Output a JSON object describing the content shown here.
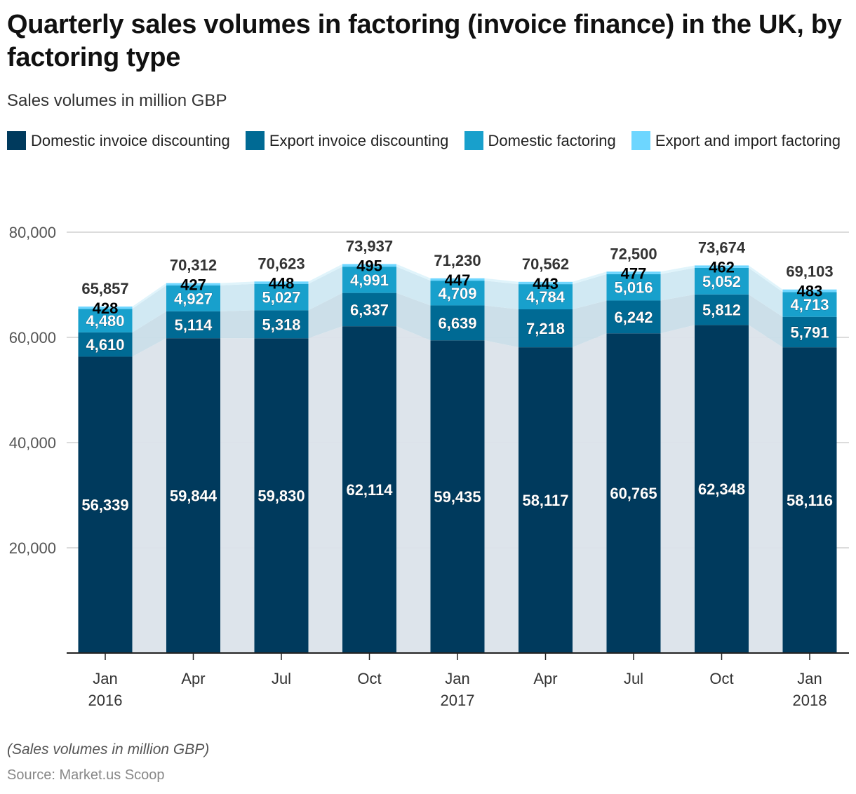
{
  "title": "Quarterly sales volumes in factoring (invoice finance) in the UK, by factoring type",
  "subtitle": "Sales volumes in million GBP",
  "footnote": "(Sales volumes in million GBP)",
  "source": "Source: Market.us Scoop",
  "colors": {
    "domestic_invoice_discounting": "#003a5d",
    "export_invoice_discounting": "#006a94",
    "domestic_factoring": "#18a0cc",
    "export_import_factoring": "#6dd6ff",
    "band": "#dbe3ea",
    "gridline": "#d0d0d0",
    "axis": "#222222"
  },
  "legend": [
    {
      "label": "Domestic invoice discounting",
      "color": "#003a5d"
    },
    {
      "label": "Export invoice discounting",
      "color": "#006a94"
    },
    {
      "label": "Domestic factoring",
      "color": "#18a0cc"
    },
    {
      "label": "Export and import factoring",
      "color": "#6dd6ff"
    }
  ],
  "chart_data": {
    "type": "bar",
    "stacked": true,
    "title": "Quarterly sales volumes in factoring (invoice finance) in the UK, by factoring type",
    "subtitle": "Sales volumes in million GBP",
    "xlabel": "",
    "ylabel": "",
    "ylim": [
      0,
      80000
    ],
    "yticks": [
      20000,
      40000,
      60000,
      80000
    ],
    "ytick_labels": [
      "20,000",
      "40,000",
      "60,000",
      "80,000"
    ],
    "grid": true,
    "legend_position": "top",
    "categories": [
      {
        "line1": "Jan",
        "line2": "2016"
      },
      {
        "line1": "Apr",
        "line2": ""
      },
      {
        "line1": "Jul",
        "line2": ""
      },
      {
        "line1": "Oct",
        "line2": ""
      },
      {
        "line1": "Jan",
        "line2": "2017"
      },
      {
        "line1": "Apr",
        "line2": ""
      },
      {
        "line1": "Jul",
        "line2": ""
      },
      {
        "line1": "Oct",
        "line2": ""
      },
      {
        "line1": "Jan",
        "line2": "2018"
      }
    ],
    "series": [
      {
        "name": "Domestic invoice discounting",
        "color": "#003a5d",
        "values": [
          56339,
          59844,
          59830,
          62114,
          59435,
          58117,
          60765,
          62348,
          58116
        ]
      },
      {
        "name": "Export invoice discounting",
        "color": "#006a94",
        "values": [
          4610,
          5114,
          5318,
          6337,
          6639,
          7218,
          6242,
          5812,
          5791
        ]
      },
      {
        "name": "Domestic factoring",
        "color": "#18a0cc",
        "values": [
          4480,
          4927,
          5027,
          4991,
          4709,
          4784,
          5016,
          5052,
          4713
        ]
      },
      {
        "name": "Export and import factoring",
        "color": "#6dd6ff",
        "values": [
          428,
          427,
          448,
          495,
          447,
          443,
          477,
          462,
          483
        ]
      }
    ],
    "totals": [
      65857,
      70312,
      70623,
      73937,
      71230,
      70562,
      72500,
      73674,
      69103
    ]
  }
}
